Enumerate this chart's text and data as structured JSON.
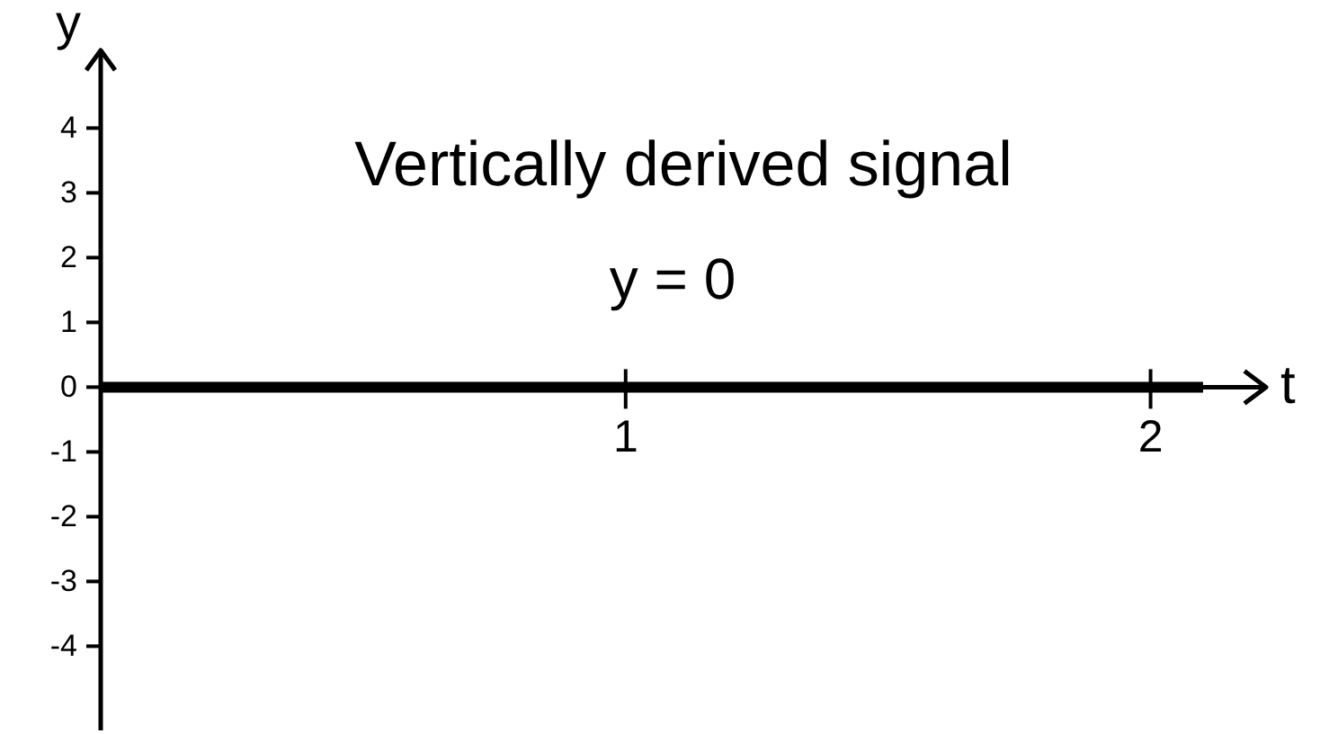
{
  "chart_data": {
    "type": "line",
    "title": "Vertically derived signal",
    "annotations": [
      "y = 0"
    ],
    "xlabel": "t",
    "ylabel": "y",
    "series": [
      {
        "color": "#000000",
        "x": [
          0,
          2.1
        ],
        "values": [
          0,
          0
        ]
      }
    ],
    "xlim": [
      0,
      2.22
    ],
    "ylim": [
      -5.3,
      5.2
    ],
    "xticks": [
      1,
      2
    ],
    "yticks": [
      -4,
      -3,
      -2,
      -1,
      0,
      1,
      2,
      3,
      4
    ]
  }
}
